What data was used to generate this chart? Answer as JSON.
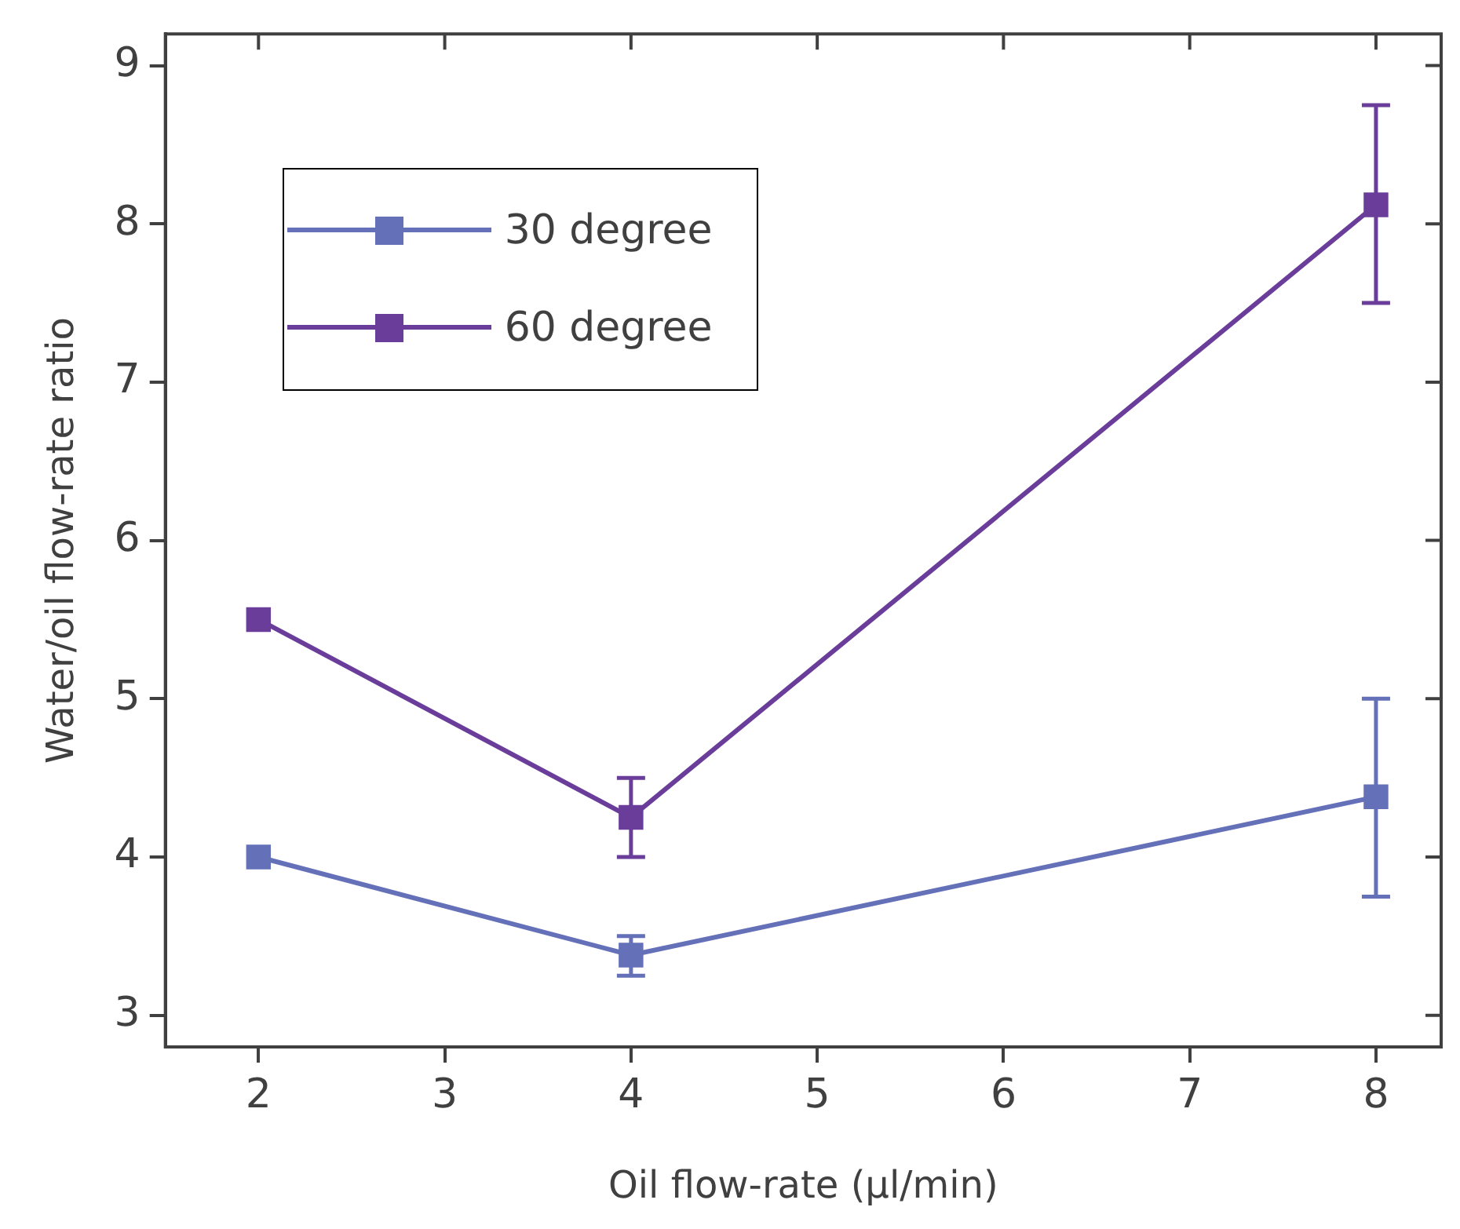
{
  "chart_data": {
    "type": "line",
    "xlabel": "Oil flow-rate (µl/min)",
    "ylabel": "Water/oil flow-rate ratio",
    "x": [
      2,
      4,
      8
    ],
    "series": [
      {
        "name": "30 degree",
        "color": "#6470b8",
        "values": [
          4.0,
          3.38,
          4.38
        ],
        "errors": [
          null,
          [
            3.25,
            3.5
          ],
          [
            3.75,
            5.0
          ]
        ]
      },
      {
        "name": "60 degree",
        "color": "#6a3d9a",
        "values": [
          5.5,
          4.25,
          8.12
        ],
        "errors": [
          null,
          [
            4.0,
            4.5
          ],
          [
            7.5,
            8.75
          ]
        ]
      }
    ],
    "xlim": [
      1.5,
      8.35
    ],
    "xticks": [
      2,
      3,
      4,
      5,
      6,
      7,
      8
    ],
    "ylim": [
      2.8,
      9.2
    ],
    "yticks": [
      3,
      4,
      5,
      6,
      7,
      8,
      9
    ],
    "grid": false,
    "legend": "top left",
    "marker": "square",
    "line_style": "solid"
  }
}
